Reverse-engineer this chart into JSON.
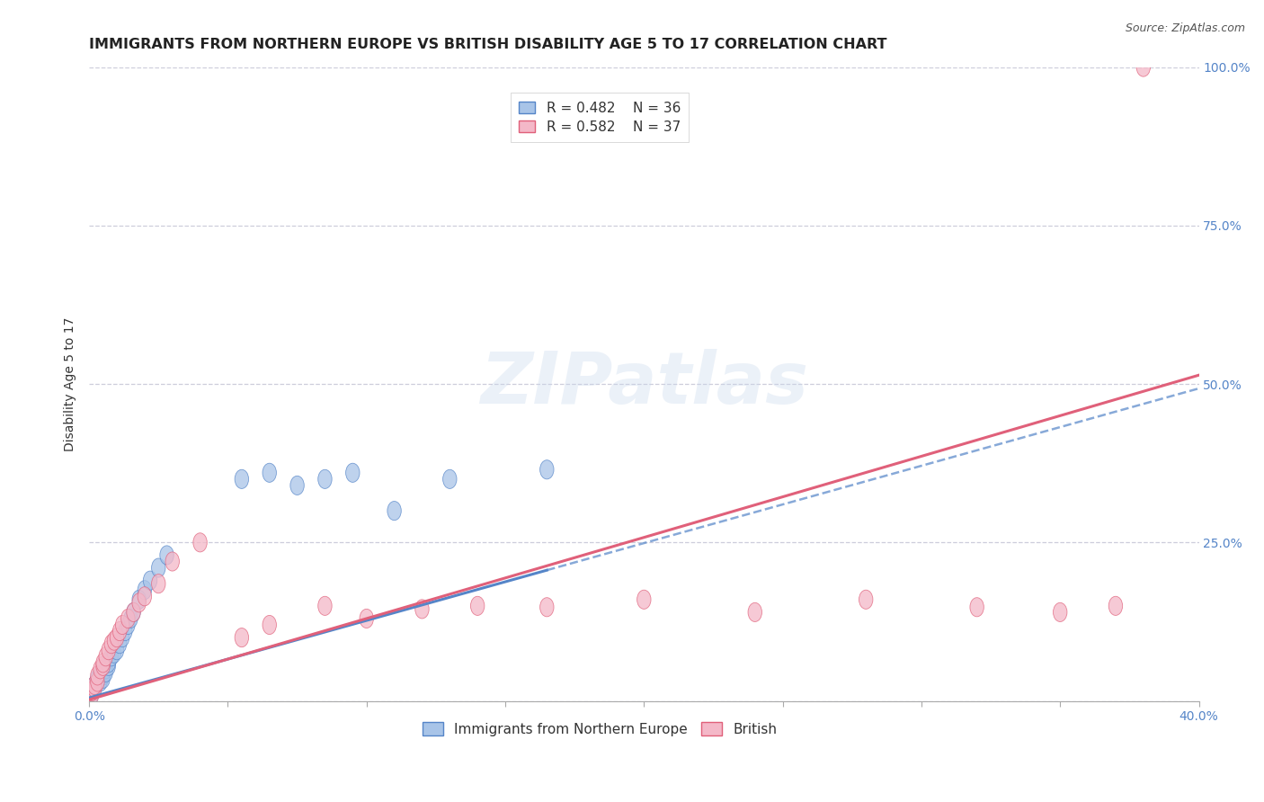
{
  "title": "IMMIGRANTS FROM NORTHERN EUROPE VS BRITISH DISABILITY AGE 5 TO 17 CORRELATION CHART",
  "source": "Source: ZipAtlas.com",
  "ylabel": "Disability Age 5 to 17",
  "xlim": [
    0.0,
    0.4
  ],
  "ylim": [
    0.0,
    1.0
  ],
  "xticks": [
    0.0,
    0.05,
    0.1,
    0.15,
    0.2,
    0.25,
    0.3,
    0.35,
    0.4
  ],
  "yticks": [
    0.0,
    0.25,
    0.5,
    0.75,
    1.0
  ],
  "blue_R": 0.482,
  "blue_N": 36,
  "pink_R": 0.582,
  "pink_N": 37,
  "blue_color": "#a8c4e8",
  "blue_line_color": "#5585c8",
  "pink_color": "#f4b8c8",
  "pink_line_color": "#e0607a",
  "blue_line_slope": 1.22,
  "blue_line_intercept": 0.005,
  "blue_line_solid_end": 0.165,
  "pink_line_slope": 1.28,
  "pink_line_intercept": 0.002,
  "blue_scatter_x": [
    0.001,
    0.001,
    0.002,
    0.002,
    0.003,
    0.003,
    0.004,
    0.004,
    0.005,
    0.005,
    0.006,
    0.006,
    0.007,
    0.007,
    0.008,
    0.009,
    0.01,
    0.011,
    0.012,
    0.013,
    0.014,
    0.015,
    0.016,
    0.018,
    0.02,
    0.022,
    0.025,
    0.028,
    0.055,
    0.065,
    0.075,
    0.085,
    0.095,
    0.11,
    0.13,
    0.165
  ],
  "blue_scatter_y": [
    0.01,
    0.015,
    0.02,
    0.025,
    0.03,
    0.035,
    0.03,
    0.04,
    0.04,
    0.035,
    0.05,
    0.045,
    0.055,
    0.06,
    0.07,
    0.075,
    0.08,
    0.09,
    0.1,
    0.11,
    0.12,
    0.13,
    0.14,
    0.16,
    0.175,
    0.19,
    0.21,
    0.23,
    0.35,
    0.36,
    0.34,
    0.35,
    0.36,
    0.3,
    0.35,
    0.365
  ],
  "pink_scatter_x": [
    0.001,
    0.001,
    0.002,
    0.002,
    0.003,
    0.003,
    0.004,
    0.005,
    0.005,
    0.006,
    0.007,
    0.008,
    0.009,
    0.01,
    0.011,
    0.012,
    0.014,
    0.016,
    0.018,
    0.02,
    0.025,
    0.03,
    0.04,
    0.055,
    0.065,
    0.085,
    0.1,
    0.12,
    0.14,
    0.165,
    0.2,
    0.24,
    0.28,
    0.32,
    0.35,
    0.37,
    0.38
  ],
  "pink_scatter_y": [
    0.01,
    0.015,
    0.02,
    0.025,
    0.03,
    0.04,
    0.05,
    0.055,
    0.06,
    0.07,
    0.08,
    0.09,
    0.095,
    0.1,
    0.11,
    0.12,
    0.13,
    0.14,
    0.155,
    0.165,
    0.185,
    0.22,
    0.25,
    0.1,
    0.12,
    0.15,
    0.13,
    0.145,
    0.15,
    0.148,
    0.16,
    0.14,
    0.16,
    0.148,
    0.14,
    0.15,
    1.0
  ],
  "background_color": "#ffffff",
  "grid_color": "#c8c8d8",
  "title_fontsize": 11.5,
  "axis_label_fontsize": 10,
  "tick_fontsize": 10,
  "legend_fontsize": 11
}
